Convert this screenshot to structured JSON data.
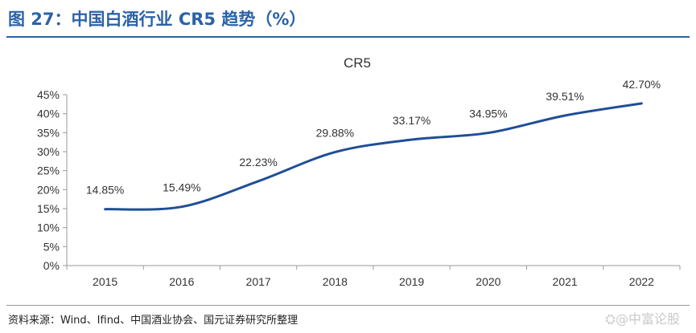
{
  "figure": {
    "title": "图 27：中国白酒行业 CR5 趋势（%）",
    "source": "资料来源：Wind、Ifind、中国酒业协会、国元证券研究所整理",
    "watermark": "⛭@中富论股"
  },
  "chart_data": {
    "type": "line",
    "title": "CR5",
    "xlabel": "",
    "ylabel": "",
    "categories": [
      "2015",
      "2016",
      "2017",
      "2018",
      "2019",
      "2020",
      "2021",
      "2022"
    ],
    "series": [
      {
        "values": [
          14.85,
          15.49,
          22.23,
          29.88,
          33.17,
          34.95,
          39.51,
          42.7
        ],
        "labels": [
          "14.85%",
          "15.49%",
          "22.23%",
          "29.88%",
          "33.17%",
          "34.95%",
          "39.51%",
          "42.70%"
        ],
        "color": "#1f4e96"
      }
    ],
    "ylim": [
      0,
      45
    ],
    "yticks": [
      "0%",
      "5%",
      "10%",
      "15%",
      "20%",
      "25%",
      "30%",
      "35%",
      "40%",
      "45%"
    ],
    "grid": false,
    "legend": "none"
  }
}
